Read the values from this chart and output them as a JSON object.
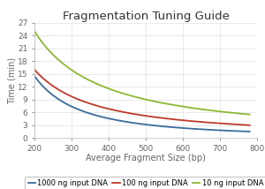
{
  "title": "Fragmentation Tuning Guide",
  "xlabel": "Average Fragment Size (bp)",
  "ylabel": "Time (min)",
  "xlim": [
    200,
    800
  ],
  "ylim": [
    0,
    27
  ],
  "yticks": [
    0,
    3,
    6,
    9,
    12,
    15,
    18,
    21,
    24,
    27
  ],
  "xticks": [
    200,
    300,
    400,
    500,
    600,
    700,
    800
  ],
  "x_start": 200,
  "x_end": 780,
  "series": [
    {
      "label": "1000 ng input DNA",
      "color": "#3a6b9a",
      "a": 7800.0,
      "b": -1.22
    },
    {
      "label": "100 ng input DNA",
      "color": "#c0392b",
      "a": 2800.0,
      "b": -0.98
    },
    {
      "label": "10 ng input DNA",
      "color": "#8db832",
      "a": 5200.0,
      "b": -0.82
    }
  ],
  "background_color": "#ffffff",
  "grid_color": "#d8d8d8",
  "title_fontsize": 9.5,
  "label_fontsize": 7,
  "tick_fontsize": 6.5,
  "legend_fontsize": 6.0
}
